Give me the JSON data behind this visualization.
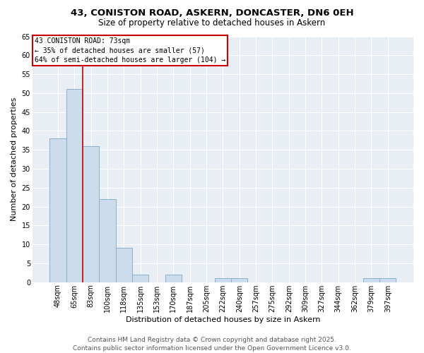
{
  "title_line1": "43, CONISTON ROAD, ASKERN, DONCASTER, DN6 0EH",
  "title_line2": "Size of property relative to detached houses in Askern",
  "categories": [
    "48sqm",
    "65sqm",
    "83sqm",
    "100sqm",
    "118sqm",
    "135sqm",
    "153sqm",
    "170sqm",
    "187sqm",
    "205sqm",
    "222sqm",
    "240sqm",
    "257sqm",
    "275sqm",
    "292sqm",
    "309sqm",
    "327sqm",
    "344sqm",
    "362sqm",
    "379sqm",
    "397sqm"
  ],
  "values": [
    38,
    51,
    36,
    22,
    9,
    2,
    0,
    2,
    0,
    0,
    1,
    1,
    0,
    0,
    0,
    0,
    0,
    0,
    0,
    1,
    1
  ],
  "bar_color": "#ccdcec",
  "bar_edgecolor": "#8ab0cc",
  "bar_linewidth": 0.7,
  "xlabel": "Distribution of detached houses by size in Askern",
  "ylabel": "Number of detached properties",
  "ylim": [
    0,
    65
  ],
  "yticks": [
    0,
    5,
    10,
    15,
    20,
    25,
    30,
    35,
    40,
    45,
    50,
    55,
    60,
    65
  ],
  "vline_x": 1.5,
  "vline_color": "#cc0000",
  "annotation_text": "43 CONISTON ROAD: 73sqm\n← 35% of detached houses are smaller (57)\n64% of semi-detached houses are larger (104) →",
  "annotation_box_facecolor": "#ffffff",
  "annotation_edge_color": "#cc0000",
  "footer_line1": "Contains HM Land Registry data © Crown copyright and database right 2025.",
  "footer_line2": "Contains public sector information licensed under the Open Government Licence v3.0.",
  "background_color": "#ffffff",
  "plot_bg_color": "#e8eef4",
  "grid_color": "#ffffff",
  "title_fontsize": 9.5,
  "subtitle_fontsize": 8.5,
  "axis_label_fontsize": 8,
  "tick_fontsize": 7,
  "annotation_fontsize": 7,
  "footer_fontsize": 6.5
}
